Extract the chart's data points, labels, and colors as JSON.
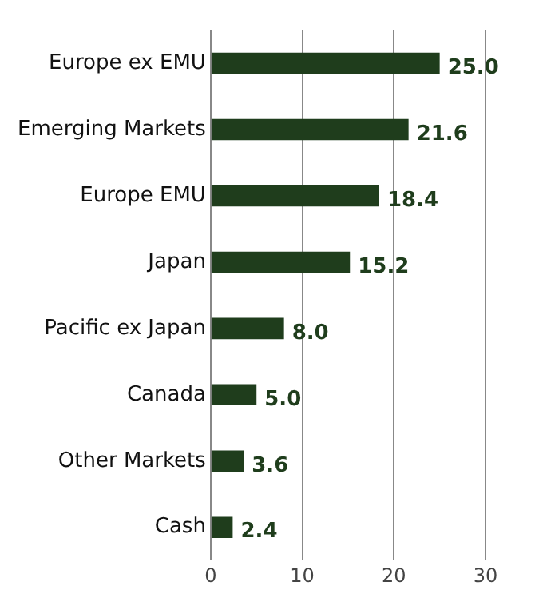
{
  "chart_data": {
    "type": "bar",
    "orientation": "horizontal",
    "categories": [
      "Europe ex EMU",
      "Emerging Markets",
      "Europe EMU",
      "Japan",
      "Pacific ex Japan",
      "Canada",
      "Other Markets",
      "Cash"
    ],
    "values": [
      25.0,
      21.6,
      18.4,
      15.2,
      8.0,
      5.0,
      3.6,
      2.4
    ],
    "value_labels": [
      "25.0",
      "21.6",
      "18.4",
      "15.2",
      "8.0",
      "5.0",
      "3.6",
      "2.4"
    ],
    "color": "#1f3d1c",
    "xlim": [
      0,
      30
    ],
    "xticks": [
      0,
      10,
      20,
      30
    ],
    "grid": "x",
    "legend": false
  }
}
